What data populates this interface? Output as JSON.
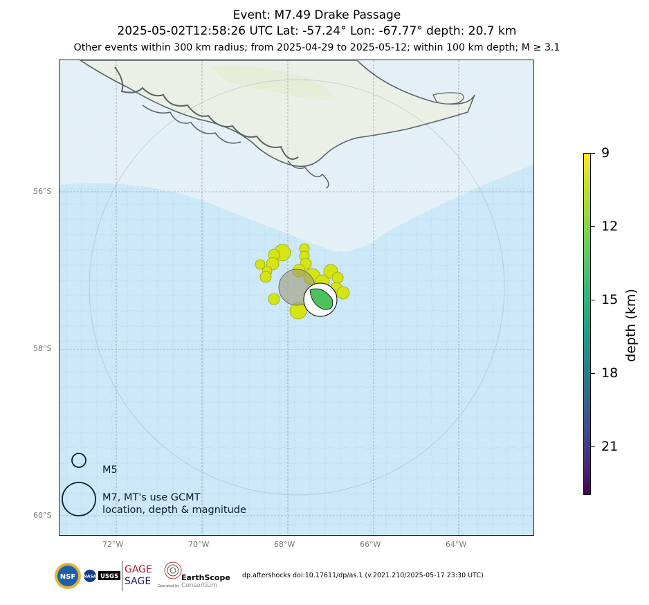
{
  "title": {
    "line1": "Event: M7.49 Drake Passage",
    "line2": "2025-05-02T12:58:26 UTC Lat: -57.24° Lon: -67.77° depth: 20.7 km",
    "line3": "Other events within 300 km radius; from 2025-04-29 to 2025-05-12; within 100 km depth; M ≥ 3.1"
  },
  "map": {
    "lon_ticks": [
      "72°W",
      "70°W",
      "68°W",
      "66°W",
      "64°W"
    ],
    "lat_ticks": [
      "56°S",
      "58°S",
      "60°S"
    ],
    "mainshock": {
      "lat": -57.24,
      "lon": -67.77,
      "depth_km": 20.7,
      "magnitude": 7.49
    },
    "search_radius_km": 300,
    "colors": {
      "ocean": "#cde8f7",
      "land": "#eef2ea",
      "coast": "#5a6366",
      "event_fill": "#d4e414",
      "mainshock_fill": "#9e9a7a",
      "beachball_fill": "#4cc25f"
    }
  },
  "legend": {
    "small_label": "M5",
    "large_label_line1": "M7, MT's use GCMT",
    "large_label_line2": "location, depth & magnitude"
  },
  "colorbar": {
    "title": "depth (km)",
    "ticks": [
      "9",
      "12",
      "15",
      "18",
      "21"
    ],
    "range": [
      8,
      22
    ],
    "colormap": "viridis"
  },
  "footer": {
    "logos": [
      "NSF",
      "NASA",
      "USGS",
      "GAGE",
      "SAGE",
      "EarthScope",
      "Consortium",
      "Operated by"
    ],
    "doi": "dp.aftershocks doi:10.17611/dp/as.1 (v.2021.210/2025-05-17 23:30 UTC)"
  }
}
